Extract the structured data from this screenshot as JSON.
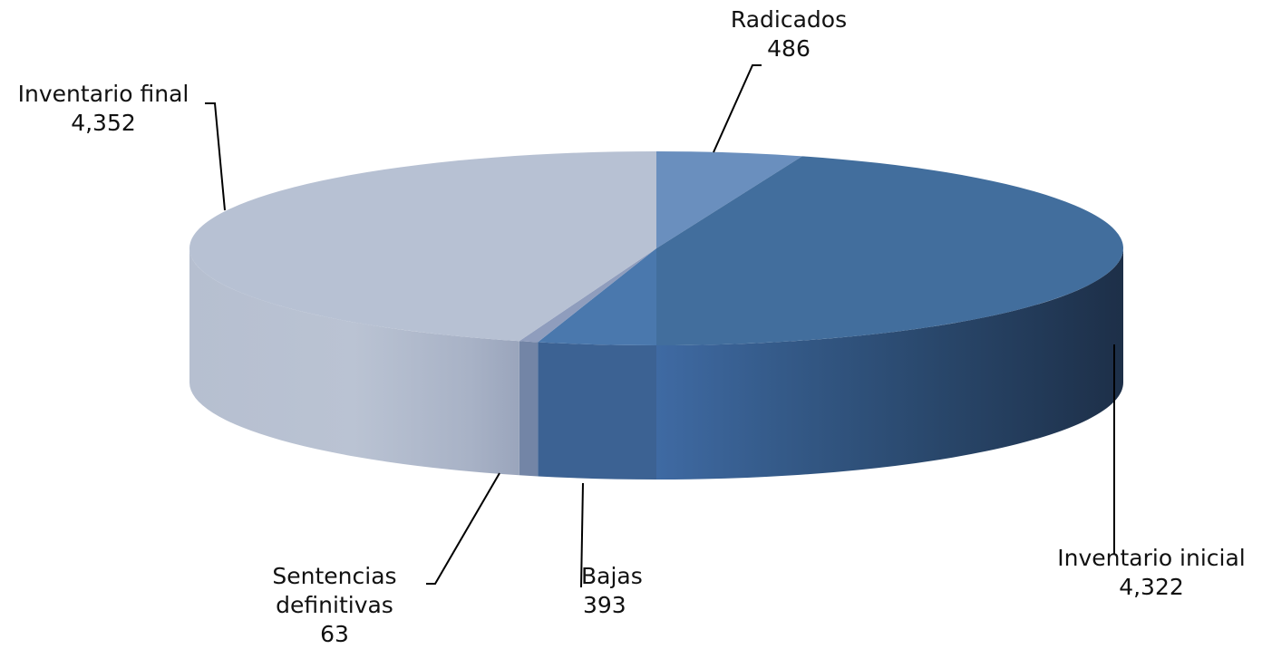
{
  "chart_data": {
    "type": "pie",
    "title": "",
    "legend": "none",
    "data_labels": "category name and value",
    "slices": [
      {
        "name": "Radicados",
        "value": 486,
        "value_label": "486",
        "color": "#6a8fbe"
      },
      {
        "name": "Inventario inicial",
        "value": 4322,
        "value_label": "4,322",
        "color": "#426e9d"
      },
      {
        "name": "Bajas",
        "value": 393,
        "value_label": "393",
        "color": "#4a78ad"
      },
      {
        "name": "Sentencias definitivas",
        "value": 63,
        "value_label": "63",
        "color": "#8f9dbd"
      },
      {
        "name": "Inventario final",
        "value": 4352,
        "value_label": "4,352",
        "color": "#b7c1d3"
      }
    ]
  }
}
